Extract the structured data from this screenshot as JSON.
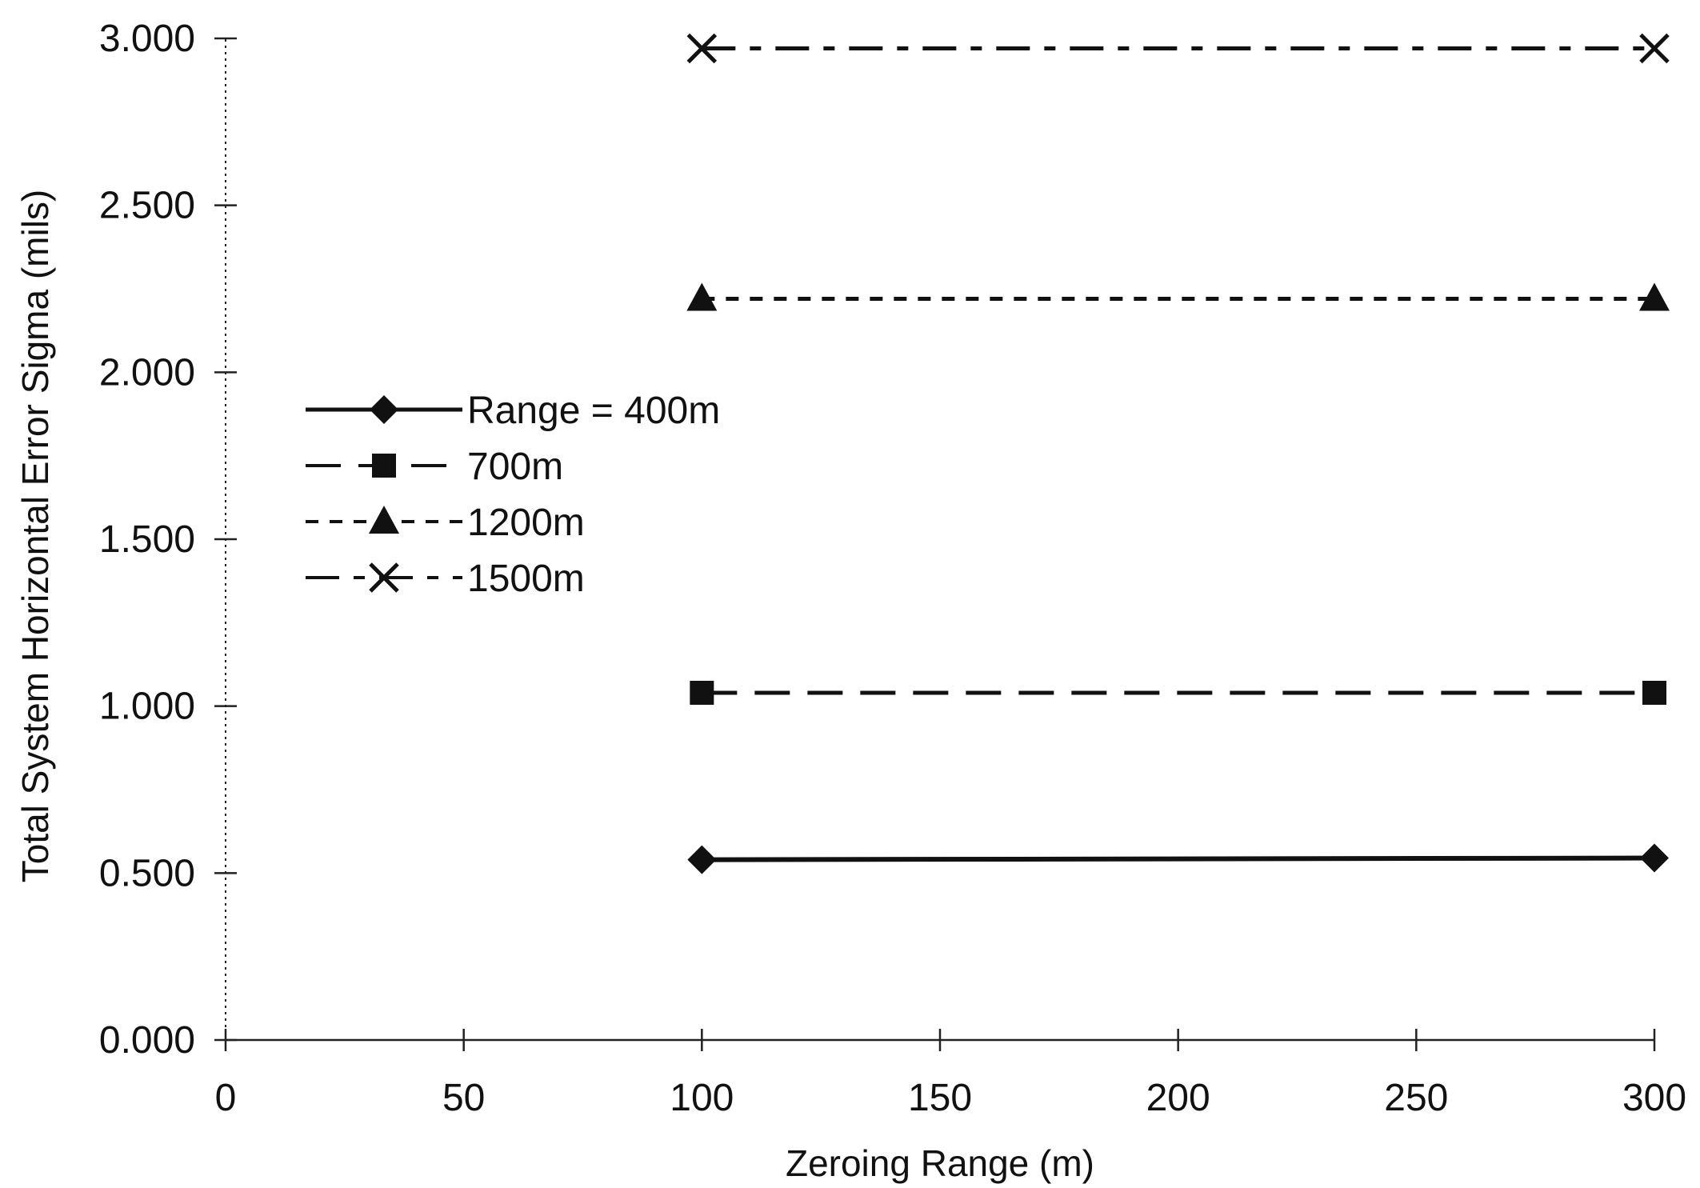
{
  "chart_data": {
    "type": "line",
    "title": "",
    "xlabel": "Zeroing Range (m)",
    "ylabel": "Total System Horizontal Error Sigma (mils)",
    "xlim": [
      0,
      300
    ],
    "ylim": [
      0,
      3
    ],
    "x_ticks": [
      "0",
      "50",
      "100",
      "150",
      "200",
      "250",
      "300"
    ],
    "x_tick_values": [
      0,
      50,
      100,
      150,
      200,
      250,
      300
    ],
    "y_ticks": [
      "0.000",
      "0.500",
      "1.000",
      "1.500",
      "2.000",
      "2.500",
      "3.000"
    ],
    "y_tick_values": [
      0,
      0.5,
      1,
      1.5,
      2,
      2.5,
      3
    ],
    "grid": false,
    "legend_position": "left",
    "series": [
      {
        "name": "Range = 400m",
        "x": [
          100,
          300
        ],
        "values": [
          0.54,
          0.545
        ],
        "marker": "diamond",
        "line": "solid"
      },
      {
        "name": "700m",
        "x": [
          100,
          300
        ],
        "values": [
          1.04,
          1.04
        ],
        "marker": "square",
        "line": "dashed"
      },
      {
        "name": "1200m",
        "x": [
          100,
          300
        ],
        "values": [
          2.22,
          2.22
        ],
        "marker": "triangle",
        "line": "dotted"
      },
      {
        "name": "1500m",
        "x": [
          100,
          300
        ],
        "values": [
          2.97,
          2.97
        ],
        "marker": "x",
        "line": "dashdot"
      }
    ]
  }
}
